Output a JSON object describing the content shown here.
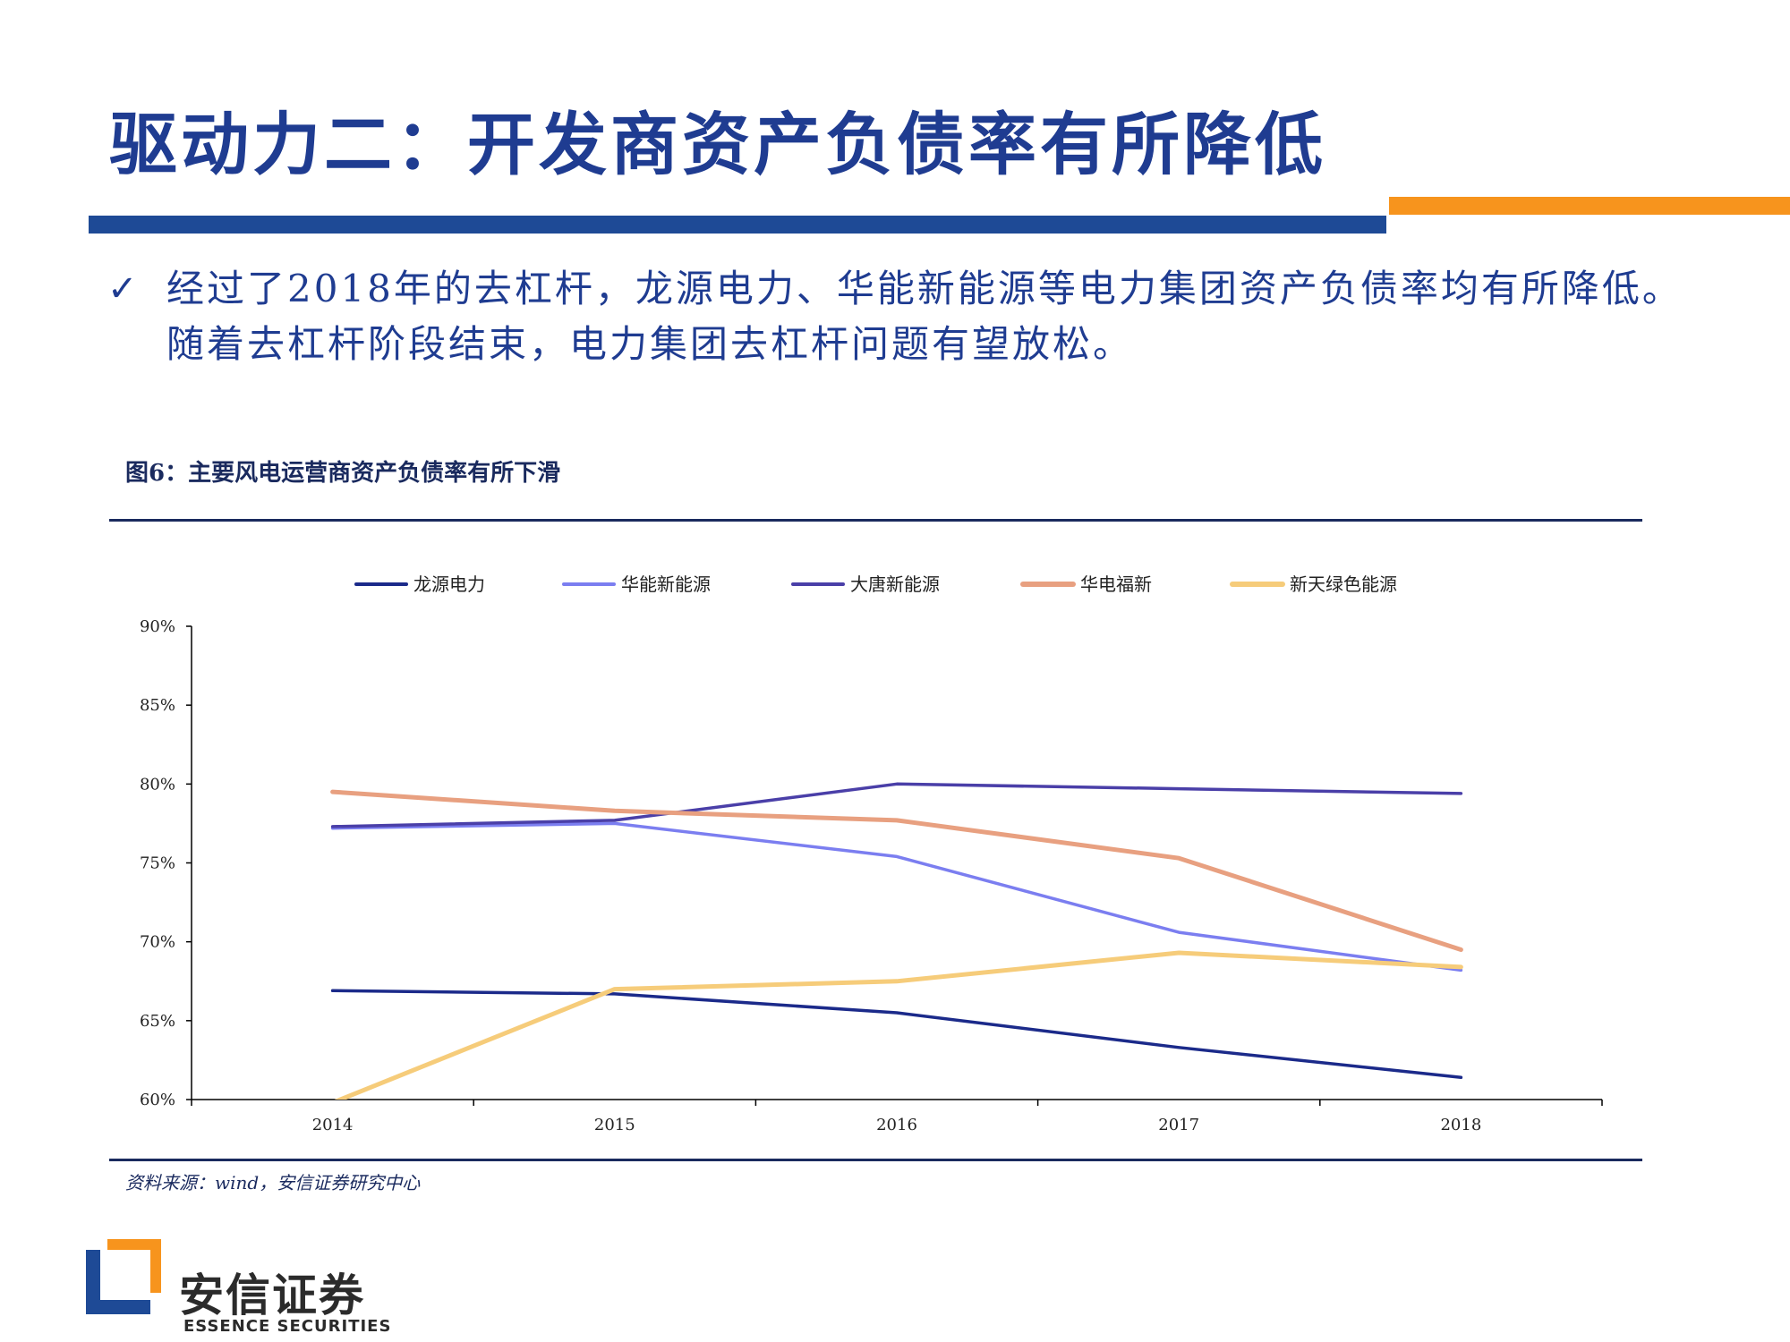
{
  "slide": {
    "title": "驱动力二：开发商资产负债率有所降低",
    "bullet_symbol": "✓",
    "bullet_text": "经过了2018年的去杠杆，龙源电力、华能新能源等电力集团资产负债率均有所降低。随着去杠杆阶段结束，电力集团去杠杆问题有望放松。",
    "caption": "图6：主要风电运营商资产负债率有所下滑",
    "source": "资料来源：wind，安信证券研究中心"
  },
  "logo": {
    "name_cn": "安信证券",
    "name_en": "ESSENCE SECURITIES"
  },
  "colors": {
    "title": "#1f3c91",
    "bar_blue": "#1e4a96",
    "bar_orange": "#f7941d",
    "logo_orange": "#f7941d",
    "logo_blue": "#1e4a96"
  },
  "chart_data": {
    "type": "line",
    "x": [
      "2014",
      "2015",
      "2016",
      "2017",
      "2018"
    ],
    "ylim": [
      0.6,
      0.9
    ],
    "yticks": [
      0.6,
      0.65,
      0.7,
      0.75,
      0.8,
      0.85,
      0.9
    ],
    "ytick_labels": [
      "60%",
      "65%",
      "70%",
      "75%",
      "80%",
      "85%",
      "90%"
    ],
    "legend_position": "top",
    "grid": false,
    "series": [
      {
        "name": "龙源电力",
        "color": "#1b2a8a",
        "values": [
          0.669,
          0.667,
          0.655,
          0.633,
          0.614
        ]
      },
      {
        "name": "华能新能源",
        "color": "#7b7ef0",
        "values": [
          0.772,
          0.775,
          0.754,
          0.706,
          0.682
        ]
      },
      {
        "name": "大唐新能源",
        "color": "#4a3fa8",
        "values": [
          0.773,
          0.777,
          0.8,
          0.797,
          0.794
        ]
      },
      {
        "name": "华电福新",
        "color": "#e8a080",
        "values": [
          0.795,
          0.783,
          0.777,
          0.753,
          0.695
        ]
      },
      {
        "name": "新天绿色能源",
        "color": "#f6cc7a",
        "values": [
          0.598,
          0.67,
          0.675,
          0.693,
          0.684
        ]
      }
    ]
  }
}
